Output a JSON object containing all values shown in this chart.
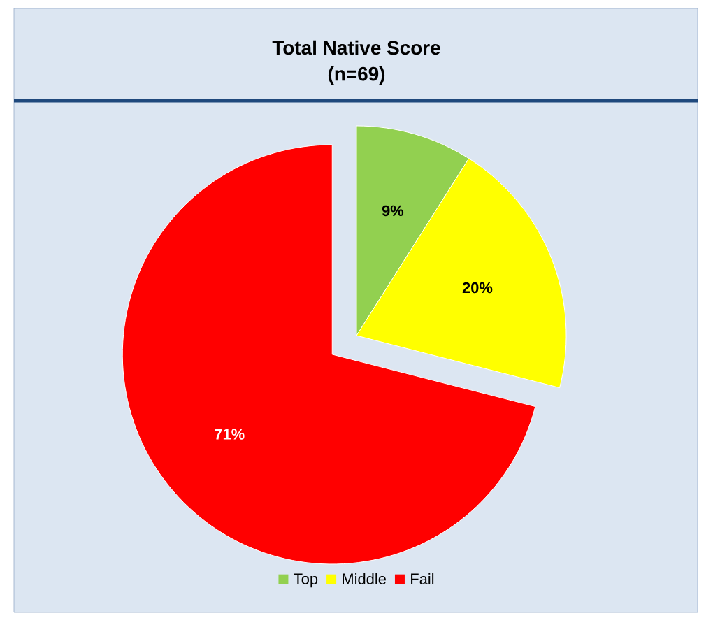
{
  "chart_data": {
    "type": "pie",
    "title": "Total Native Score",
    "subtitle": "(n=69)",
    "categories": [
      "Top",
      "Middle",
      "Fail"
    ],
    "values": [
      9,
      20,
      71
    ],
    "colors": [
      "#92d050",
      "#ffff00",
      "#ff0000"
    ],
    "value_labels": [
      "9%",
      "20%",
      "71%"
    ],
    "legend": "bottom"
  }
}
